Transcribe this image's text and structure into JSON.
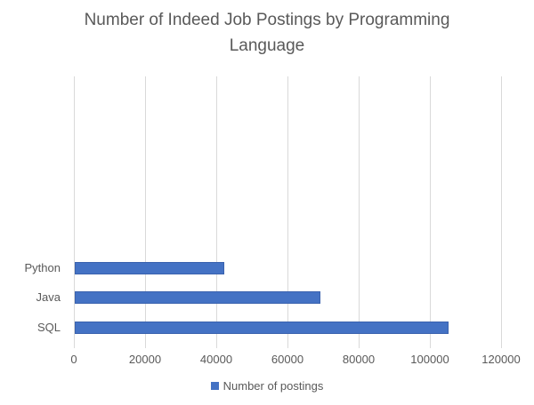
{
  "chart_data": {
    "type": "bar",
    "orientation": "horizontal",
    "title": "Number of Indeed Job Postings by Programming Language",
    "categories": [
      "Python",
      "Java",
      "SQL"
    ],
    "series": [
      {
        "name": "Number of postings",
        "values": [
          42000,
          69000,
          105000
        ]
      }
    ],
    "xlabel": "",
    "ylabel": "",
    "xlim": [
      0,
      120000
    ],
    "x_ticks": [
      0,
      20000,
      40000,
      60000,
      80000,
      100000,
      120000
    ],
    "x_tick_labels": [
      "0",
      "20000",
      "40000",
      "60000",
      "80000",
      "100000",
      "120000"
    ],
    "grid": "vertical gridlines on",
    "legend": {
      "position": "bottom",
      "entries": [
        "Number of postings"
      ]
    },
    "colors": {
      "bar_fill": "#4472C4",
      "bar_border": "#3A62AE",
      "gridline": "#D9D9D9",
      "text": "#595959",
      "background": "#FFFFFF"
    }
  }
}
